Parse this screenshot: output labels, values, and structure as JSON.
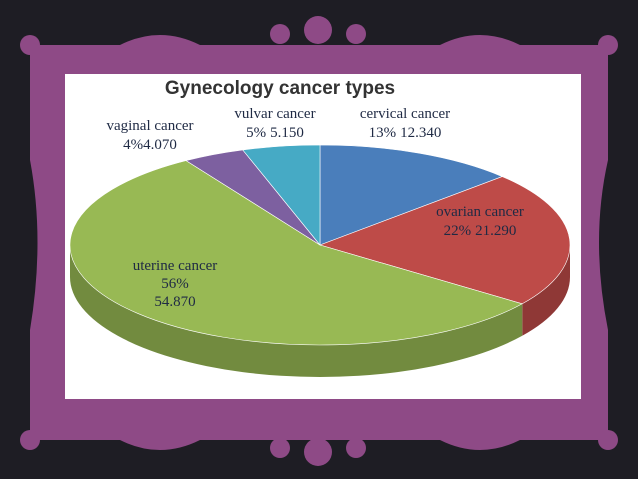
{
  "chart_data": {
    "type": "pie",
    "title": "Gynecology cancer types",
    "categories": [
      "cervical cancer",
      "ovarian cancer",
      "uterine cancer",
      "vaginal cancer",
      "vulvar cancer"
    ],
    "values": [
      13,
      22,
      56,
      4,
      5
    ],
    "value_labels": [
      "13%",
      "22%",
      "56%",
      "4%",
      "5%"
    ],
    "counts": [
      {
        "value": 12340,
        "label": "12.340"
      },
      {
        "value": 21290,
        "label": "21.290"
      },
      {
        "value": 54870,
        "label": "54.870"
      },
      {
        "value": 4070,
        "label": "4.070"
      },
      {
        "value": 5150,
        "label": "5.150"
      }
    ],
    "colors": [
      "#4a7ebb",
      "#be4b48",
      "#98b954",
      "#7d60a0",
      "#46aac5"
    ]
  }
}
